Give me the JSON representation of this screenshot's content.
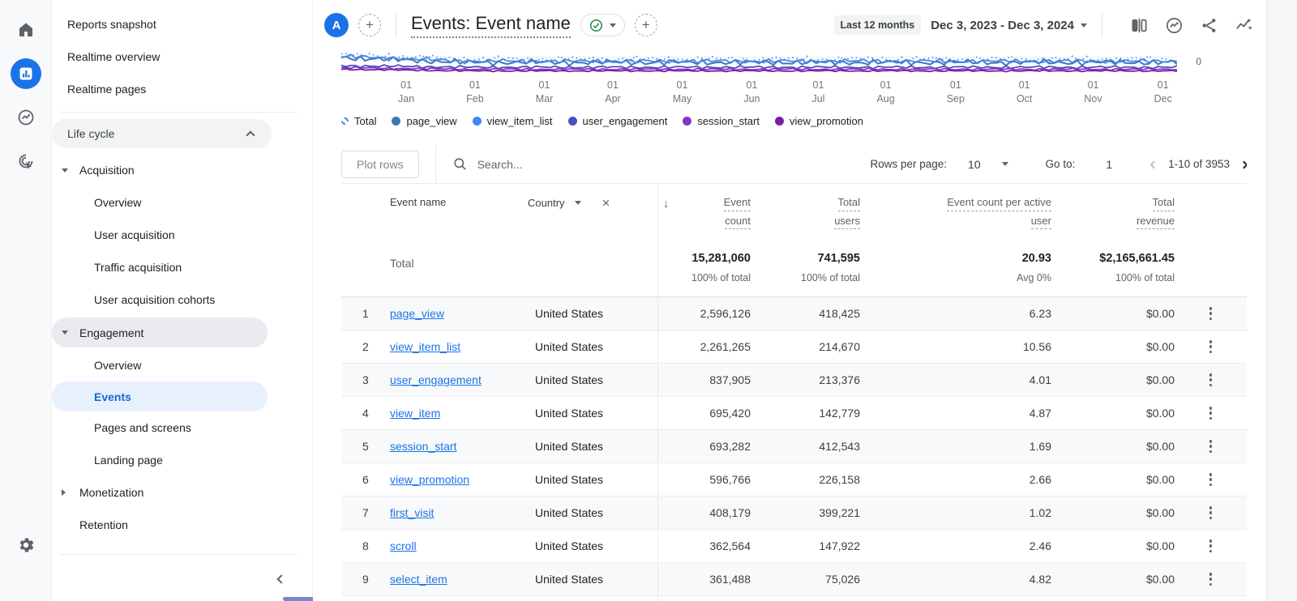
{
  "rail": {
    "icons": [
      "home",
      "reports",
      "explore",
      "advertising"
    ],
    "settings_icon": "gear"
  },
  "sidebar": {
    "items": [
      {
        "label": "Reports snapshot",
        "type": "top"
      },
      {
        "label": "Realtime overview",
        "type": "top"
      },
      {
        "label": "Realtime pages",
        "type": "top",
        "divider_after": true
      },
      {
        "label": "Life cycle",
        "type": "header",
        "chevron": "up"
      },
      {
        "label": "Acquisition",
        "type": "group",
        "caret": "down"
      },
      {
        "label": "Overview",
        "type": "child"
      },
      {
        "label": "User acquisition",
        "type": "child"
      },
      {
        "label": "Traffic acquisition",
        "type": "child"
      },
      {
        "label": "User acquisition cohorts",
        "type": "child"
      },
      {
        "label": "Engagement",
        "type": "group",
        "caret": "down",
        "highlight": true
      },
      {
        "label": "Overview",
        "type": "child"
      },
      {
        "label": "Events",
        "type": "child",
        "selected": true
      },
      {
        "label": "Pages and screens",
        "type": "child"
      },
      {
        "label": "Landing page",
        "type": "child"
      },
      {
        "label": "Monetization",
        "type": "group",
        "caret": "right"
      },
      {
        "label": "Retention",
        "type": "group"
      }
    ]
  },
  "header": {
    "avatar": "A",
    "title": "Events: Event name",
    "date_preset": "Last 12 months",
    "date_range": "Dec 3, 2023 - Dec 3, 2024"
  },
  "chart": {
    "type": "line",
    "y_tick_visible": "0",
    "x_ticks": [
      {
        "day": "01",
        "month": "Jan"
      },
      {
        "day": "01",
        "month": "Feb"
      },
      {
        "day": "01",
        "month": "Mar"
      },
      {
        "day": "01",
        "month": "Apr"
      },
      {
        "day": "01",
        "month": "May"
      },
      {
        "day": "01",
        "month": "Jun"
      },
      {
        "day": "01",
        "month": "Jul"
      },
      {
        "day": "01",
        "month": "Aug"
      },
      {
        "day": "01",
        "month": "Sep"
      },
      {
        "day": "01",
        "month": "Oct"
      },
      {
        "day": "01",
        "month": "Nov"
      },
      {
        "day": "01",
        "month": "Dec"
      }
    ],
    "legend": [
      {
        "label": "Total",
        "color": "#4285f4",
        "style": "dashed"
      },
      {
        "label": "page_view",
        "color": "#4079b0",
        "style": "solid"
      },
      {
        "label": "view_item_list",
        "color": "#4285f4",
        "style": "solid"
      },
      {
        "label": "user_engagement",
        "color": "#4b4fc0",
        "style": "solid"
      },
      {
        "label": "session_start",
        "color": "#8435c9",
        "style": "solid"
      },
      {
        "label": "view_promotion",
        "color": "#7b1fa2",
        "style": "solid"
      }
    ],
    "note": "chart body scrolled mostly out of view; only baseline of daily line series visible"
  },
  "toolbar": {
    "plot_rows": "Plot rows",
    "search_placeholder": "Search...",
    "rows_per_page_label": "Rows per page:",
    "rows_per_page": "10",
    "goto_label": "Go to:",
    "goto_value": "1",
    "range": "1-10 of 3953"
  },
  "table": {
    "columns": {
      "dimension": "Event name",
      "secondary_dimension": "Country",
      "metrics": [
        [
          "Event",
          "count"
        ],
        [
          "Total",
          "users"
        ],
        [
          "Event count per active",
          "user"
        ],
        [
          "Total",
          "revenue"
        ]
      ]
    },
    "totals": {
      "label": "Total",
      "event_count": "15,281,060",
      "event_count_sub": "100% of total",
      "total_users": "741,595",
      "total_users_sub": "100% of total",
      "per_user": "20.93",
      "per_user_sub": "Avg 0%",
      "revenue": "$2,165,661.45",
      "revenue_sub": "100% of total"
    },
    "rows": [
      {
        "index": "1",
        "event_name": "page_view",
        "country": "United States",
        "event_count": "2,596,126",
        "total_users": "418,425",
        "per_user": "6.23",
        "revenue": "$0.00"
      },
      {
        "index": "2",
        "event_name": "view_item_list",
        "country": "United States",
        "event_count": "2,261,265",
        "total_users": "214,670",
        "per_user": "10.56",
        "revenue": "$0.00"
      },
      {
        "index": "3",
        "event_name": "user_engagement",
        "country": "United States",
        "event_count": "837,905",
        "total_users": "213,376",
        "per_user": "4.01",
        "revenue": "$0.00"
      },
      {
        "index": "4",
        "event_name": "view_item",
        "country": "United States",
        "event_count": "695,420",
        "total_users": "142,779",
        "per_user": "4.87",
        "revenue": "$0.00"
      },
      {
        "index": "5",
        "event_name": "session_start",
        "country": "United States",
        "event_count": "693,282",
        "total_users": "412,543",
        "per_user": "1.69",
        "revenue": "$0.00"
      },
      {
        "index": "6",
        "event_name": "view_promotion",
        "country": "United States",
        "event_count": "596,766",
        "total_users": "226,158",
        "per_user": "2.66",
        "revenue": "$0.00"
      },
      {
        "index": "7",
        "event_name": "first_visit",
        "country": "United States",
        "event_count": "408,179",
        "total_users": "399,221",
        "per_user": "1.02",
        "revenue": "$0.00"
      },
      {
        "index": "8",
        "event_name": "scroll",
        "country": "United States",
        "event_count": "362,564",
        "total_users": "147,922",
        "per_user": "2.46",
        "revenue": "$0.00"
      },
      {
        "index": "9",
        "event_name": "select_item",
        "country": "United States",
        "event_count": "361,488",
        "total_users": "75,026",
        "per_user": "4.82",
        "revenue": "$0.00"
      }
    ]
  }
}
